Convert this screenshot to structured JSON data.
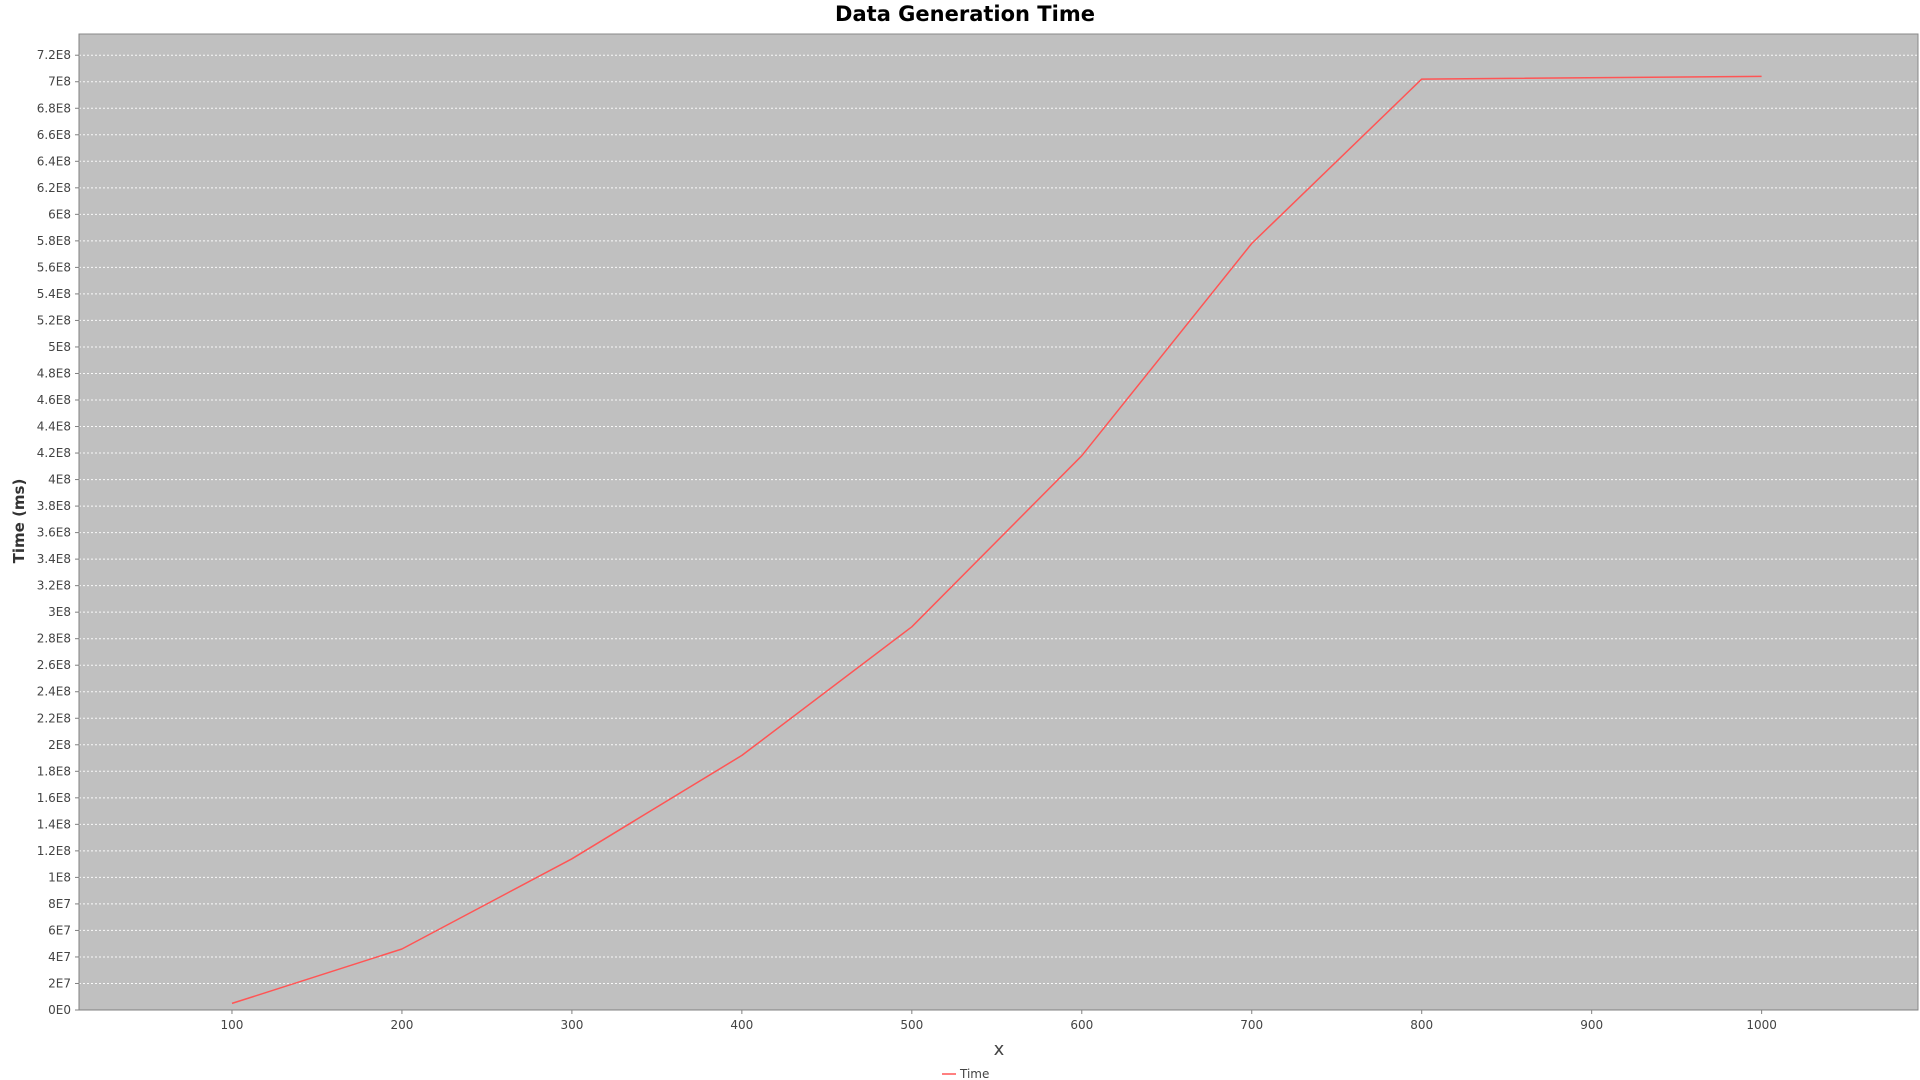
{
  "chart_data": {
    "type": "line",
    "title": "Data Generation Time",
    "xlabel": "x",
    "ylabel": "Time (ms)",
    "xlim": [
      10,
      1092
    ],
    "ylim": [
      0,
      736000000
    ],
    "xticks": [
      100,
      200,
      300,
      400,
      500,
      600,
      700,
      800,
      900,
      1000
    ],
    "xtick_labels": [
      "100",
      "200",
      "300",
      "400",
      "500",
      "600",
      "700",
      "800",
      "900",
      "1000"
    ],
    "yticks": [
      0,
      20000000,
      40000000,
      60000000,
      80000000,
      100000000,
      120000000,
      140000000,
      160000000,
      180000000,
      200000000,
      220000000,
      240000000,
      260000000,
      280000000,
      300000000,
      320000000,
      340000000,
      360000000,
      380000000,
      400000000,
      420000000,
      440000000,
      460000000,
      480000000,
      500000000,
      520000000,
      540000000,
      560000000,
      580000000,
      600000000,
      620000000,
      640000000,
      660000000,
      680000000,
      700000000,
      720000000
    ],
    "ytick_labels": [
      "0E0",
      "2E7",
      "4E7",
      "6E7",
      "8E7",
      "1E8",
      "1.2E8",
      "1.4E8",
      "1.6E8",
      "1.8E8",
      "2E8",
      "2.2E8",
      "2.4E8",
      "2.6E8",
      "2.8E8",
      "3E8",
      "3.2E8",
      "3.4E8",
      "3.6E8",
      "3.8E8",
      "4E8",
      "4.2E8",
      "4.4E8",
      "4.6E8",
      "4.8E8",
      "5E8",
      "5.2E8",
      "5.4E8",
      "5.6E8",
      "5.8E8",
      "6E8",
      "6.2E8",
      "6.4E8",
      "6.6E8",
      "6.8E8",
      "7E8",
      "7.2E8"
    ],
    "grid": true,
    "legend_position": "bottom-center",
    "background_color": "#c0c0c0",
    "grid_color": "#ffffff",
    "series": [
      {
        "name": "Time",
        "color": "#ff5555",
        "x": [
          100,
          200,
          300,
          400,
          500,
          600,
          700,
          800,
          1000
        ],
        "y": [
          5000000,
          46000000,
          114000000,
          192000000,
          289000000,
          418000000,
          578000000,
          702000000,
          704000000
        ]
      }
    ]
  }
}
